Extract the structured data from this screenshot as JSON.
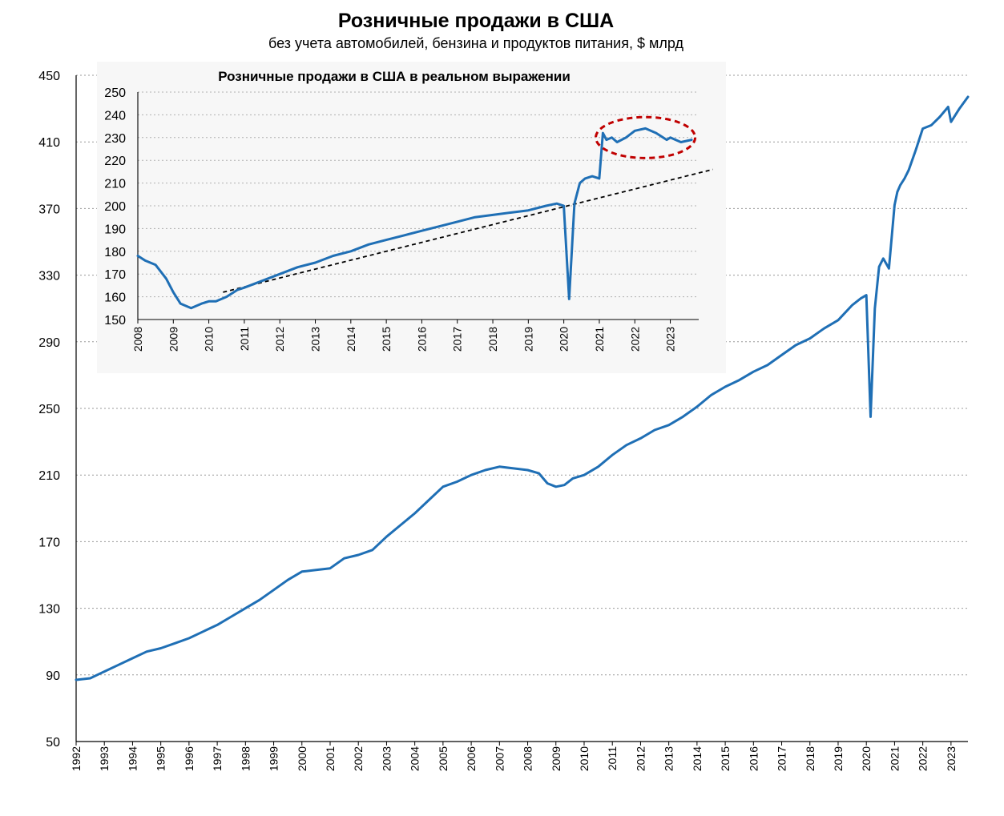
{
  "chart_data": [
    {
      "type": "line",
      "title": "Розничные продажи в США",
      "subtitle": "без учета автомобилей, бензина и продуктов питания,  $ млрд",
      "xlabel": "",
      "ylabel": "",
      "ylim": [
        50,
        450
      ],
      "yticks": [
        "50",
        "90",
        "130",
        "170",
        "210",
        "250",
        "290",
        "330",
        "370",
        "410",
        "450"
      ],
      "xticks": [
        "1992",
        "1993",
        "1994",
        "1995",
        "1996",
        "1997",
        "1998",
        "1999",
        "2000",
        "2001",
        "2002",
        "2003",
        "2004",
        "2005",
        "2006",
        "2007",
        "2008",
        "2009",
        "2010",
        "2011",
        "2012",
        "2013",
        "2014",
        "2015",
        "2016",
        "2017",
        "2018",
        "2019",
        "2020",
        "2021",
        "2022",
        "2023"
      ],
      "grid": true,
      "line_color": "#1F6FB5",
      "series": [
        {
          "x": [
            1992.0,
            1992.5,
            1993.0,
            1993.5,
            1994.0,
            1994.5,
            1995.0,
            1995.5,
            1996.0,
            1996.5,
            1997.0,
            1997.5,
            1998.0,
            1998.5,
            1999.0,
            1999.5,
            2000.0,
            2000.5,
            2001.0,
            2001.5,
            2002.0,
            2002.5,
            2003.0,
            2003.5,
            2004.0,
            2004.5,
            2005.0,
            2005.5,
            2006.0,
            2006.5,
            2007.0,
            2007.5,
            2008.0,
            2008.4,
            2008.7,
            2009.0,
            2009.3,
            2009.6,
            2010.0,
            2010.5,
            2011.0,
            2011.5,
            2012.0,
            2012.5,
            2013.0,
            2013.5,
            2014.0,
            2014.5,
            2015.0,
            2015.5,
            2016.0,
            2016.5,
            2017.0,
            2017.5,
            2018.0,
            2018.5,
            2019.0,
            2019.5,
            2019.8,
            2020.0,
            2020.15,
            2020.3,
            2020.45,
            2020.6,
            2020.8,
            2021.0,
            2021.1,
            2021.2,
            2021.35,
            2021.5,
            2021.75,
            2022.0,
            2022.3,
            2022.6,
            2022.9,
            2023.0,
            2023.3,
            2023.6
          ],
          "y": [
            87,
            88,
            92,
            96,
            100,
            104,
            106,
            109,
            112,
            116,
            120,
            125,
            130,
            135,
            141,
            147,
            152,
            153,
            154,
            160,
            162,
            165,
            173,
            180,
            187,
            195,
            203,
            206,
            210,
            213,
            215,
            214,
            213,
            211,
            205,
            203,
            204,
            208,
            210,
            215,
            222,
            228,
            232,
            237,
            240,
            245,
            251,
            258,
            263,
            267,
            272,
            276,
            282,
            288,
            292,
            298,
            303,
            312,
            316,
            318,
            245,
            310,
            335,
            340,
            334,
            372,
            380,
            384,
            388,
            393,
            405,
            418,
            420,
            425,
            431,
            422,
            430,
            437
          ]
        }
      ]
    },
    {
      "type": "line",
      "title": "Розничные продажи в США в реальном выражении",
      "ylim": [
        150,
        250
      ],
      "yticks": [
        "150",
        "160",
        "170",
        "180",
        "190",
        "200",
        "210",
        "220",
        "230",
        "240",
        "250"
      ],
      "xticks": [
        "2008",
        "2009",
        "2010",
        "2011",
        "2012",
        "2013",
        "2014",
        "2015",
        "2016",
        "2017",
        "2018",
        "2019",
        "2020",
        "2021",
        "2022",
        "2023"
      ],
      "grid": true,
      "line_color": "#1F6FB5",
      "trend_line": {
        "style": "dashed",
        "color": "#000000",
        "x": [
          2010.4,
          2024.2
        ],
        "y": [
          162,
          216
        ]
      },
      "highlight": {
        "shape": "ellipse",
        "style": "dashed",
        "color": "#C00000",
        "center_x": 2022.3,
        "center_y": 230,
        "radius_x": 1.4,
        "radius_y": 9
      },
      "series": [
        {
          "x": [
            2008.0,
            2008.2,
            2008.5,
            2008.8,
            2009.0,
            2009.2,
            2009.5,
            2009.8,
            2010.0,
            2010.2,
            2010.5,
            2010.8,
            2011.0,
            2011.5,
            2012.0,
            2012.5,
            2013.0,
            2013.5,
            2014.0,
            2014.5,
            2015.0,
            2015.5,
            2016.0,
            2016.5,
            2017.0,
            2017.5,
            2018.0,
            2018.5,
            2019.0,
            2019.5,
            2019.8,
            2020.0,
            2020.15,
            2020.3,
            2020.45,
            2020.6,
            2020.8,
            2021.0,
            2021.1,
            2021.2,
            2021.35,
            2021.5,
            2021.75,
            2022.0,
            2022.3,
            2022.6,
            2022.9,
            2023.0,
            2023.3,
            2023.6
          ],
          "y": [
            178,
            176,
            174,
            168,
            162,
            157,
            155,
            157,
            158,
            158,
            160,
            163,
            164,
            167,
            170,
            173,
            175,
            178,
            180,
            183,
            185,
            187,
            189,
            191,
            193,
            195,
            196,
            197,
            198,
            200,
            201,
            200,
            159,
            201,
            210,
            212,
            213,
            212,
            232,
            229,
            230,
            228,
            230,
            233,
            234,
            232,
            229,
            230,
            228,
            229
          ]
        }
      ]
    }
  ]
}
